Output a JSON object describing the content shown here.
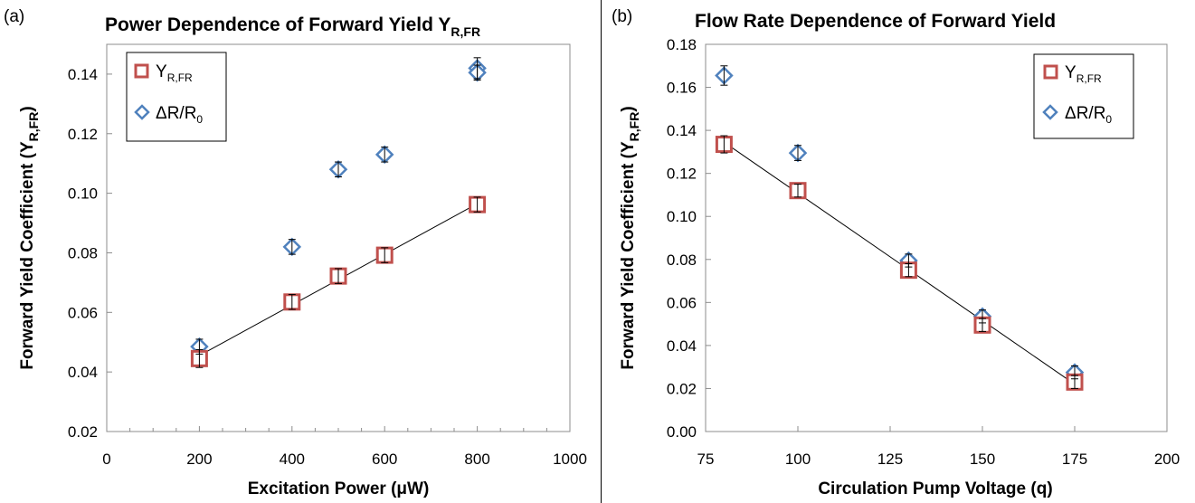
{
  "chart_data": [
    {
      "type": "scatter",
      "panel_label": "(a)",
      "title": "Power Dependence of Forward Yield Y",
      "title_sub": "R,FR",
      "xlabel": "Excitation Power (μW)",
      "ylabel": "Forward Yield Coefficient (Y",
      "ylabel_sub": "R,FR",
      "ylabel_end": ")",
      "xlim": [
        0,
        1000
      ],
      "ylim": [
        0.02,
        0.15
      ],
      "xticks": [
        0,
        200,
        400,
        600,
        800,
        1000
      ],
      "xtick_labels": [
        "0",
        "200",
        "400",
        "600",
        "800",
        "1000"
      ],
      "yticks": [
        0.02,
        0.04,
        0.06,
        0.08,
        0.1,
        0.12,
        0.14
      ],
      "ytick_labels": [
        "0.02",
        "0.04",
        "0.06",
        "0.08",
        "0.10",
        "0.12",
        "0.14"
      ],
      "legend_position": "top-left",
      "series": [
        {
          "name": "Y",
          "name_sub": "R,FR",
          "marker": "square",
          "color": "#c0504d",
          "x": [
            200,
            400,
            500,
            600,
            800
          ],
          "y": [
            0.0445,
            0.0635,
            0.0722,
            0.0792,
            0.0962
          ],
          "err": [
            0.003,
            0.0025,
            0.0025,
            0.0025,
            0.0025
          ]
        },
        {
          "name": "ΔR/R",
          "name_sub": "0",
          "marker": "diamond",
          "color": "#4f81bd",
          "x": [
            200,
            400,
            500,
            600,
            800,
            800
          ],
          "y": [
            0.0485,
            0.082,
            0.108,
            0.113,
            0.142,
            0.1405
          ],
          "err": [
            0.0025,
            0.0025,
            0.0025,
            0.0025,
            0.0035,
            0.0025
          ]
        }
      ],
      "fit_line": {
        "x": [
          200,
          800
        ],
        "y": [
          0.0455,
          0.0965
        ]
      }
    },
    {
      "type": "scatter",
      "panel_label": "(b)",
      "title": "Flow Rate Dependence of Forward Yield",
      "xlabel": "Circulation Pump Voltage (q)",
      "ylabel": "Forward Yield Coefficient (Y",
      "ylabel_sub": "R,FR",
      "ylabel_end": ")",
      "xlim": [
        75,
        200
      ],
      "ylim": [
        0,
        0.18
      ],
      "xticks": [
        75,
        100,
        125,
        150,
        175,
        200
      ],
      "xtick_labels": [
        "75",
        "100",
        "125",
        "150",
        "175",
        "200"
      ],
      "yticks": [
        0,
        0.02,
        0.04,
        0.06,
        0.08,
        0.1,
        0.12,
        0.14,
        0.16,
        0.18
      ],
      "ytick_labels": [
        "0.00",
        "0.02",
        "0.04",
        "0.06",
        "0.08",
        "0.10",
        "0.12",
        "0.14",
        "0.16",
        "0.18"
      ],
      "legend_position": "top-right",
      "series": [
        {
          "name": "Y",
          "name_sub": "R,FR",
          "marker": "square",
          "color": "#c0504d",
          "x": [
            80,
            100,
            130,
            150,
            175
          ],
          "y": [
            0.1335,
            0.112,
            0.075,
            0.0495,
            0.023
          ],
          "err": [
            0.004,
            0.003,
            0.003,
            0.003,
            0.003
          ]
        },
        {
          "name": "ΔR/R",
          "name_sub": "0",
          "marker": "diamond",
          "color": "#4f81bd",
          "x": [
            80,
            100,
            130,
            150,
            175
          ],
          "y": [
            0.1655,
            0.1295,
            0.0795,
            0.0535,
            0.0275
          ],
          "err": [
            0.0045,
            0.0035,
            0.003,
            0.003,
            0.003
          ]
        }
      ],
      "fit_line": {
        "x": [
          80,
          175
        ],
        "y": [
          0.1345,
          0.022
        ]
      }
    }
  ]
}
